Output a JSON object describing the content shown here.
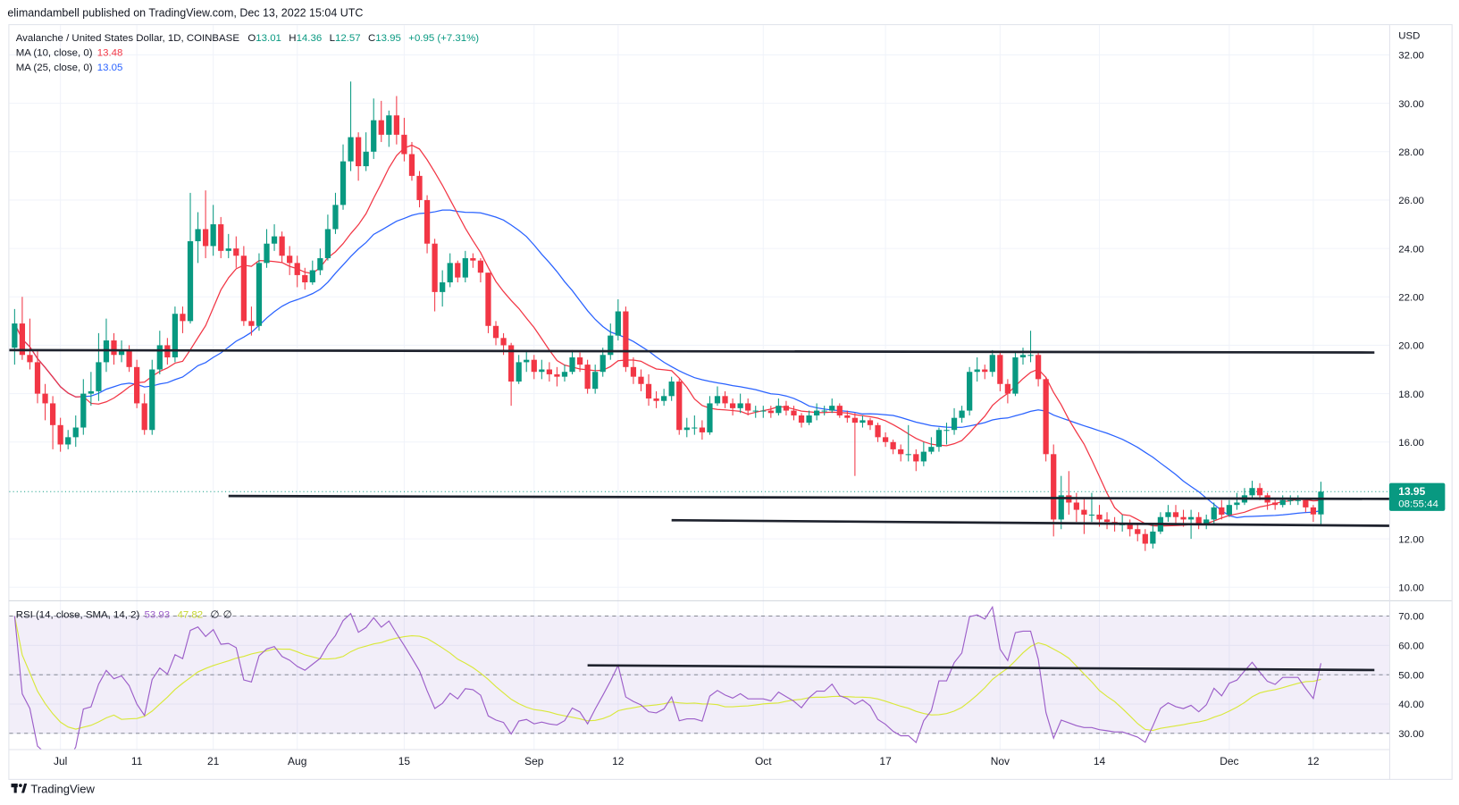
{
  "header": {
    "published": "elimandambell published on TradingView.com, Dec 13, 2022 15:04 UTC"
  },
  "legend": {
    "symbol": "Avalanche / United States Dollar, 1D, COINBASE",
    "o_label": "O",
    "o": "13.01",
    "h_label": "H",
    "h": "14.36",
    "l_label": "L",
    "l": "12.57",
    "c_label": "C",
    "c": "13.95",
    "change": "+0.95 (+7.31%)",
    "ma10_label": "MA (10, close, 0)",
    "ma10": "13.48",
    "ma25_label": "MA (25, close, 0)",
    "ma25": "13.05",
    "rsi_label": "RSI (14, close, SMA, 14, 2)",
    "rsi": "53.93",
    "rsi_sma": "47.82",
    "extra1": "∅",
    "extra2": "∅"
  },
  "price_axis": {
    "currency": "USD",
    "ticks": [
      "32.00",
      "30.00",
      "28.00",
      "26.00",
      "24.00",
      "22.00",
      "20.00",
      "18.00",
      "16.00",
      "12.00",
      "10.00"
    ]
  },
  "rsi_axis": {
    "ticks": [
      "70.00",
      "60.00",
      "50.00",
      "40.00",
      "30.00"
    ]
  },
  "last_price": {
    "value": "13.95",
    "countdown": "08:55:44"
  },
  "time_axis": [
    {
      "label": "Jul",
      "date": "2022-07-01"
    },
    {
      "label": "11",
      "date": "2022-07-11"
    },
    {
      "label": "21",
      "date": "2022-07-21"
    },
    {
      "label": "Aug",
      "date": "2022-08-01"
    },
    {
      "label": "15",
      "date": "2022-08-15"
    },
    {
      "label": "Sep",
      "date": "2022-09-01"
    },
    {
      "label": "12",
      "date": "2022-09-12"
    },
    {
      "label": "Oct",
      "date": "2022-10-01"
    },
    {
      "label": "17",
      "date": "2022-10-17"
    },
    {
      "label": "Nov",
      "date": "2022-11-01"
    },
    {
      "label": "14",
      "date": "2022-11-14"
    },
    {
      "label": "Dec",
      "date": "2022-12-01"
    },
    {
      "label": "12",
      "date": "2022-12-12"
    }
  ],
  "footer": {
    "brand": "TradingView"
  },
  "colors": {
    "up": "#089981",
    "down": "#f23645",
    "ma10": "#f23645",
    "ma25": "#2962ff",
    "rsi": "#9c5ec9",
    "rsi_sma": "#d9e83a",
    "drawing": "#1e222d"
  },
  "chart_data": {
    "type": "candlestick",
    "start_date": "2022-06-25",
    "first_open": 19.9,
    "ylim": [
      9.5,
      33
    ],
    "rsi_ylim": [
      25,
      75
    ],
    "close": [
      20.9,
      19.6,
      19.3,
      18.0,
      17.6,
      16.7,
      15.9,
      16.2,
      16.6,
      18.0,
      18.1,
      19.3,
      20.2,
      19.6,
      19.8,
      19.1,
      17.6,
      16.5,
      19.0,
      20.0,
      19.5,
      21.3,
      21.0,
      24.3,
      24.8,
      24.1,
      25.0,
      23.9,
      24.0,
      23.7,
      21.0,
      20.8,
      23.4,
      24.2,
      24.5,
      23.7,
      23.4,
      22.9,
      22.6,
      23.1,
      23.6,
      24.8,
      25.8,
      27.6,
      28.6,
      27.4,
      28.0,
      29.3,
      28.7,
      29.5,
      28.7,
      27.9,
      27.0,
      26.0,
      24.2,
      22.2,
      22.6,
      23.4,
      22.8,
      23.6,
      23.5,
      23.0,
      20.8,
      20.3,
      20.0,
      18.5,
      19.3,
      19.4,
      18.9,
      19.0,
      18.8,
      18.7,
      18.9,
      19.5,
      19.2,
      18.2,
      18.9,
      19.6,
      20.4,
      21.4,
      19.1,
      18.7,
      18.4,
      17.8,
      17.7,
      17.9,
      18.5,
      16.5,
      16.6,
      16.6,
      16.4,
      17.6,
      17.9,
      17.6,
      17.4,
      17.6,
      17.3,
      17.3,
      17.3,
      17.2,
      17.5,
      17.3,
      17.1,
      16.8,
      17.1,
      17.3,
      17.3,
      17.5,
      17.1,
      17.0,
      16.8,
      16.9,
      16.7,
      16.2,
      16.0,
      15.7,
      15.5,
      15.5,
      15.2,
      15.6,
      15.8,
      16.5,
      16.5,
      17.0,
      17.3,
      18.9,
      19.0,
      18.9,
      19.6,
      18.4,
      18.0,
      19.5,
      19.6,
      19.6,
      18.6,
      15.5,
      12.8,
      13.8,
      13.5,
      13.2,
      13.0,
      13.0,
      12.8,
      12.7,
      12.6,
      12.6,
      12.4,
      12.2,
      11.8,
      12.3,
      12.9,
      13.1,
      12.9,
      12.8,
      12.9,
      12.6,
      12.8,
      13.3,
      13.0,
      13.4,
      13.5,
      13.8,
      14.1,
      13.8,
      13.5,
      13.4,
      13.6,
      13.6,
      13.6,
      13.3,
      13.01,
      13.95
    ],
    "high": [
      21.5,
      22.0,
      21.1,
      19.8,
      18.4,
      17.9,
      17.0,
      16.5,
      17.1,
      18.6,
      18.9,
      20.5,
      21.1,
      20.5,
      20.2,
      20.0,
      19.4,
      18.0,
      19.4,
      20.6,
      20.3,
      21.6,
      21.6,
      26.3,
      25.5,
      26.4,
      25.8,
      25.3,
      24.6,
      24.5,
      24.1,
      21.6,
      23.8,
      24.8,
      25.0,
      24.7,
      24.1,
      23.7,
      23.2,
      23.5,
      24.0,
      25.4,
      26.3,
      28.3,
      30.9,
      28.8,
      28.8,
      30.2,
      30.1,
      29.7,
      30.3,
      29.4,
      28.4,
      27.2,
      26.2,
      24.4,
      23.1,
      23.8,
      23.5,
      23.9,
      23.8,
      23.6,
      23.0,
      21.0,
      20.5,
      20.1,
      19.6,
      19.8,
      19.6,
      19.4,
      19.3,
      19.1,
      19.2,
      19.8,
      19.7,
      19.4,
      19.2,
      19.9,
      20.9,
      21.9,
      21.6,
      19.5,
      19.0,
      18.8,
      18.1,
      18.2,
      18.7,
      18.6,
      17.0,
      17.1,
      16.9,
      17.9,
      18.3,
      18.1,
      17.8,
      18.0,
      17.8,
      17.5,
      17.5,
      17.5,
      17.8,
      17.7,
      17.5,
      17.2,
      17.3,
      17.6,
      17.5,
      17.8,
      17.6,
      17.3,
      17.2,
      17.1,
      17.0,
      16.8,
      16.4,
      16.1,
      15.9,
      16.7,
      15.7,
      16.0,
      16.2,
      16.6,
      16.8,
      17.4,
      17.5,
      19.1,
      19.5,
      19.2,
      19.8,
      19.7,
      18.6,
      19.7,
      19.9,
      20.6,
      19.7,
      18.7,
      15.9,
      14.6,
      14.8,
      13.9,
      13.7,
      13.9,
      13.4,
      13.1,
      12.9,
      13.0,
      12.8,
      12.6,
      12.4,
      12.6,
      13.1,
      13.4,
      13.4,
      13.2,
      13.2,
      13.1,
      13.0,
      13.5,
      13.6,
      13.6,
      13.9,
      14.1,
      14.4,
      14.3,
      13.9,
      13.7,
      13.8,
      13.8,
      13.8,
      13.7,
      13.4,
      14.36
    ],
    "low": [
      19.2,
      19.4,
      19.0,
      17.6,
      16.9,
      15.7,
      15.6,
      15.7,
      15.8,
      16.3,
      17.5,
      17.7,
      18.9,
      19.2,
      19.3,
      18.9,
      17.4,
      16.3,
      16.3,
      18.8,
      19.2,
      19.3,
      20.5,
      20.9,
      23.4,
      23.6,
      23.7,
      23.6,
      23.6,
      23.2,
      20.8,
      20.4,
      20.6,
      23.2,
      23.9,
      23.4,
      22.9,
      22.4,
      22.3,
      22.5,
      22.9,
      23.5,
      24.6,
      25.6,
      27.2,
      26.8,
      27.2,
      27.7,
      28.4,
      28.2,
      28.3,
      27.6,
      26.8,
      25.7,
      23.8,
      21.4,
      21.6,
      22.4,
      22.6,
      22.6,
      23.2,
      22.6,
      20.5,
      20.0,
      19.6,
      17.5,
      18.4,
      18.9,
      18.6,
      18.6,
      18.5,
      18.3,
      18.5,
      18.8,
      18.9,
      18.0,
      18.0,
      18.7,
      19.4,
      20.2,
      18.9,
      18.4,
      18.1,
      17.5,
      17.4,
      17.5,
      17.7,
      16.3,
      16.2,
      16.3,
      16.1,
      16.3,
      17.5,
      17.4,
      17.1,
      17.2,
      17.1,
      17.0,
      17.0,
      17.0,
      17.1,
      17.1,
      16.9,
      16.6,
      16.7,
      16.9,
      17.1,
      17.2,
      17.0,
      16.8,
      14.6,
      16.6,
      16.5,
      16.0,
      15.8,
      15.5,
      15.2,
      15.2,
      14.8,
      15.0,
      15.5,
      15.6,
      15.9,
      16.3,
      16.8,
      17.1,
      18.5,
      18.6,
      18.7,
      18.1,
      17.6,
      17.9,
      19.2,
      19.3,
      18.3,
      15.2,
      12.1,
      12.4,
      13.0,
      12.7,
      12.2,
      12.7,
      12.5,
      12.4,
      12.3,
      12.3,
      12.1,
      11.9,
      11.5,
      11.6,
      12.2,
      12.7,
      12.6,
      12.5,
      12.0,
      12.4,
      12.4,
      12.6,
      12.8,
      12.9,
      13.2,
      13.4,
      13.7,
      13.6,
      13.2,
      13.2,
      13.3,
      13.4,
      13.4,
      13.1,
      12.7,
      12.57
    ],
    "drawings": [
      {
        "pane": "price",
        "from": [
          "2022-06-24",
          19.8
        ],
        "to": [
          "2022-12-20",
          19.7
        ]
      },
      {
        "pane": "price",
        "from": [
          "2022-07-23",
          13.77
        ],
        "to": [
          "2022-12-22",
          13.65
        ]
      },
      {
        "pane": "price",
        "from": [
          "2022-09-19",
          12.77
        ],
        "to": [
          "2022-12-22",
          12.54
        ]
      },
      {
        "pane": "rsi",
        "from": [
          "2022-09-08",
          53.2
        ],
        "to": [
          "2022-12-20",
          51.6
        ]
      }
    ]
  }
}
